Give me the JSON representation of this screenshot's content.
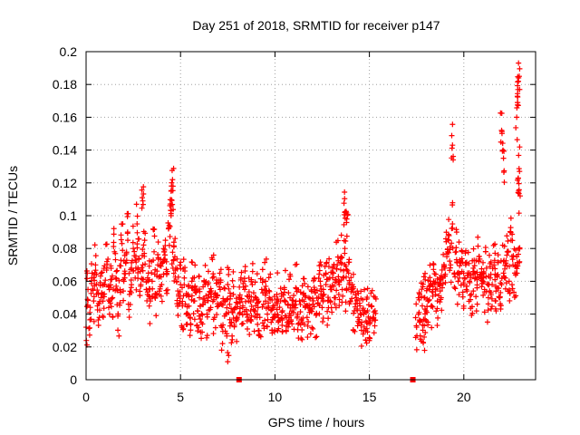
{
  "chart_data": {
    "type": "scatter",
    "title": "Day 251 of 2018, SRMTID for receiver p147",
    "xlabel": "GPS time / hours",
    "ylabel": "SRMTID / TECUs",
    "xlim": [
      0,
      23.8
    ],
    "ylim": [
      0,
      0.2
    ],
    "xticks": [
      0,
      5,
      10,
      15,
      20
    ],
    "xtick_labels": [
      "0",
      "5",
      "10",
      "15",
      "20"
    ],
    "yticks": [
      0,
      0.02,
      0.04,
      0.06,
      0.08,
      0.1,
      0.12,
      0.14,
      0.16,
      0.18,
      0.2
    ],
    "ytick_labels": [
      "0",
      "0.02",
      "0.04",
      "0.06",
      "0.08",
      "0.1",
      "0.12",
      "0.14",
      "0.16",
      "0.18",
      "0.2"
    ],
    "grid": true,
    "marker": "+",
    "color": "#ff0000",
    "zero_markers": [
      8.1,
      17.3
    ],
    "series": [
      {
        "name": "SRMTID",
        "x": [
          0.0,
          0.1,
          0.2,
          0.3,
          0.4,
          0.5,
          0.6,
          0.7,
          0.8,
          0.9,
          1.0,
          1.1,
          1.2,
          1.3,
          1.4,
          1.5,
          1.6,
          1.7,
          1.8,
          1.9,
          2.0,
          2.1,
          2.2,
          2.3,
          2.4,
          2.5,
          2.6,
          2.7,
          2.8,
          2.9,
          3.0,
          3.1,
          3.2,
          3.3,
          3.4,
          3.5,
          3.6,
          3.7,
          3.8,
          3.9,
          4.0,
          4.1,
          4.2,
          4.3,
          4.4,
          4.5,
          4.6,
          4.7,
          4.8,
          4.9,
          5.0,
          5.1,
          5.2,
          5.3,
          5.4,
          5.5,
          5.6,
          5.7,
          5.8,
          5.9,
          6.0,
          6.1,
          6.2,
          6.3,
          6.4,
          6.5,
          6.6,
          6.7,
          6.8,
          6.9,
          7.0,
          7.1,
          7.2,
          7.3,
          7.4,
          7.5,
          7.6,
          7.7,
          7.8,
          7.9,
          8.0,
          8.1,
          8.2,
          8.3,
          8.4,
          8.5,
          8.6,
          8.7,
          8.8,
          8.9,
          9.0,
          9.1,
          9.2,
          9.3,
          9.4,
          9.5,
          9.6,
          9.7,
          9.8,
          9.9,
          10.0,
          10.1,
          10.2,
          10.3,
          10.4,
          10.5,
          10.6,
          10.7,
          10.8,
          10.9,
          11.0,
          11.1,
          11.2,
          11.3,
          11.4,
          11.5,
          11.6,
          11.7,
          11.8,
          11.9,
          12.0,
          12.1,
          12.2,
          12.3,
          12.4,
          12.5,
          12.6,
          12.7,
          12.8,
          12.9,
          13.0,
          13.1,
          13.2,
          13.3,
          13.4,
          13.5,
          13.6,
          13.7,
          13.8,
          13.9,
          14.0,
          14.1,
          14.2,
          14.3,
          14.4,
          14.5,
          14.6,
          14.7,
          14.8,
          14.9,
          15.0,
          15.1,
          15.2,
          15.3,
          17.5,
          17.6,
          17.7,
          17.8,
          17.9,
          18.0,
          18.1,
          18.2,
          18.3,
          18.4,
          18.5,
          18.6,
          18.7,
          18.8,
          18.9,
          19.0,
          19.1,
          19.2,
          19.3,
          19.4,
          19.5,
          19.6,
          19.7,
          19.8,
          19.9,
          20.0,
          20.1,
          20.2,
          20.3,
          20.4,
          20.5,
          20.6,
          20.7,
          20.8,
          20.9,
          21.0,
          21.1,
          21.2,
          21.3,
          21.4,
          21.5,
          21.6,
          21.7,
          21.8,
          21.9,
          22.0,
          22.1,
          22.2,
          22.3,
          22.4,
          22.5,
          22.6,
          22.7,
          22.8,
          22.9,
          3.0,
          4.5,
          4.6,
          13.7,
          13.8,
          19.4,
          22.0,
          22.1,
          22.8,
          22.85,
          22.9,
          22.95,
          22.9,
          7.5,
          17.9
        ],
        "y": [
          0.032,
          0.055,
          0.041,
          0.062,
          0.048,
          0.07,
          0.045,
          0.038,
          0.065,
          0.052,
          0.058,
          0.072,
          0.044,
          0.061,
          0.05,
          0.078,
          0.066,
          0.04,
          0.055,
          0.083,
          0.06,
          0.071,
          0.09,
          0.052,
          0.068,
          0.08,
          0.062,
          0.095,
          0.074,
          0.058,
          0.07,
          0.085,
          0.055,
          0.065,
          0.048,
          0.06,
          0.078,
          0.052,
          0.07,
          0.063,
          0.058,
          0.072,
          0.085,
          0.066,
          0.094,
          0.1,
          0.068,
          0.075,
          0.06,
          0.052,
          0.058,
          0.045,
          0.062,
          0.04,
          0.052,
          0.038,
          0.06,
          0.048,
          0.055,
          0.042,
          0.05,
          0.035,
          0.046,
          0.058,
          0.04,
          0.052,
          0.044,
          0.062,
          0.038,
          0.05,
          0.045,
          0.055,
          0.032,
          0.048,
          0.04,
          0.058,
          0.046,
          0.035,
          0.052,
          0.044,
          0.038,
          0.05,
          0.062,
          0.045,
          0.055,
          0.04,
          0.048,
          0.036,
          0.058,
          0.042,
          0.05,
          0.044,
          0.038,
          0.055,
          0.046,
          0.06,
          0.04,
          0.05,
          0.035,
          0.045,
          0.04,
          0.052,
          0.036,
          0.048,
          0.042,
          0.055,
          0.038,
          0.046,
          0.05,
          0.034,
          0.044,
          0.056,
          0.04,
          0.048,
          0.036,
          0.052,
          0.045,
          0.038,
          0.05,
          0.042,
          0.046,
          0.055,
          0.04,
          0.05,
          0.06,
          0.044,
          0.052,
          0.058,
          0.048,
          0.062,
          0.055,
          0.065,
          0.05,
          0.07,
          0.058,
          0.075,
          0.062,
          0.08,
          0.055,
          0.065,
          0.048,
          0.058,
          0.042,
          0.05,
          0.038,
          0.045,
          0.035,
          0.04,
          0.03,
          0.042,
          0.036,
          0.045,
          0.038,
          0.042,
          0.032,
          0.04,
          0.036,
          0.045,
          0.05,
          0.042,
          0.048,
          0.055,
          0.045,
          0.06,
          0.052,
          0.048,
          0.058,
          0.05,
          0.062,
          0.068,
          0.075,
          0.085,
          0.07,
          0.095,
          0.065,
          0.078,
          0.06,
          0.072,
          0.066,
          0.058,
          0.07,
          0.065,
          0.06,
          0.052,
          0.068,
          0.062,
          0.056,
          0.072,
          0.064,
          0.06,
          0.055,
          0.068,
          0.05,
          0.062,
          0.058,
          0.07,
          0.054,
          0.064,
          0.05,
          0.058,
          0.072,
          0.062,
          0.078,
          0.06,
          0.085,
          0.07,
          0.065,
          0.075,
          0.08,
          0.109,
          0.115,
          0.118,
          0.102,
          0.098,
          0.143,
          0.152,
          0.135,
          0.16,
          0.169,
          0.184,
          0.127,
          0.115,
          0.011,
          0.026
        ]
      }
    ]
  }
}
